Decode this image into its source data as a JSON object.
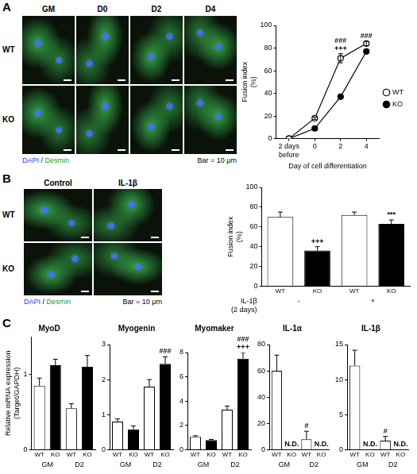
{
  "panels": [
    {
      "label": "A",
      "image_grid": {
        "columns": [
          "GM",
          "D0",
          "D2",
          "D4"
        ],
        "rows": [
          "WT",
          "KO"
        ],
        "stain": "DAPI / Desmin",
        "scale_bar": "Bar = 10 μm"
      }
    },
    {
      "label": "B",
      "image_grid": {
        "columns": [
          "Control",
          "IL-1β"
        ],
        "rows": [
          "WT",
          "KO"
        ],
        "stain": "DAPI / Desmin",
        "scale_bar": "Bar = 10 μm"
      }
    },
    {
      "label": "C"
    }
  ],
  "chart_data": [
    {
      "panel": "A",
      "type": "line",
      "x_label": "Day of cell differentiation",
      "y_label": "Fusion index (%)",
      "categories": [
        "2 days before",
        "0",
        "2",
        "4"
      ],
      "series": [
        {
          "name": "WT",
          "color": "#000000",
          "marker": "open_circle",
          "values": [
            0,
            18,
            71,
            84
          ],
          "errors": [
            0,
            1,
            4,
            2
          ]
        },
        {
          "name": "KO",
          "color": "#000000",
          "marker": "circle",
          "values": [
            0,
            9,
            37,
            77
          ],
          "errors": [
            0,
            1,
            1,
            1
          ]
        }
      ],
      "ylim": [
        0,
        100
      ],
      "yticks": [
        0,
        20,
        40,
        60,
        80,
        100
      ],
      "grid": false,
      "legend": "right",
      "annotations": [
        {
          "index": 2,
          "text": "+++"
        },
        {
          "index": 2,
          "text": "###"
        },
        {
          "index": 3,
          "text": "###"
        }
      ]
    },
    {
      "panel": "B",
      "type": "bar",
      "y_label": "Fusion index (%)",
      "categories": [
        "WT",
        "KO",
        "WT",
        "KO"
      ],
      "groups": [
        "-",
        "+"
      ],
      "group_title": "IL-1β (2 days)",
      "values": [
        70,
        36,
        72,
        63
      ],
      "errors": [
        5,
        4,
        3,
        4
      ],
      "colors": [
        "#ffffff",
        "#000000",
        "#ffffff",
        "#000000"
      ],
      "ylim": [
        0,
        100
      ],
      "yticks": [
        0,
        20,
        40,
        60,
        80,
        100
      ],
      "grid": false,
      "annotations": [
        {
          "index": 1,
          "text": "+++"
        },
        {
          "index": 3,
          "text": "***"
        }
      ]
    },
    {
      "panel": "C",
      "type": "bar",
      "title": "MyoD",
      "y_label": "Relative mRNA expression (Target/GAPDH)",
      "categories": [
        "WT",
        "KO",
        "WT",
        "KO"
      ],
      "groups": [
        "GM",
        "D2"
      ],
      "values": [
        0.85,
        1.12,
        0.55,
        1.1
      ],
      "errors": [
        0.1,
        0.08,
        0.06,
        0.15
      ],
      "colors": [
        "#ffffff",
        "#000000",
        "#ffffff",
        "#000000"
      ],
      "ylim": [
        0,
        1.5
      ],
      "yticks": [
        0,
        1
      ],
      "grid": false,
      "annotations": []
    },
    {
      "panel": "C",
      "type": "bar",
      "title": "Myogenin",
      "categories": [
        "WT",
        "KO",
        "WT",
        "KO"
      ],
      "groups": [
        "GM",
        "D2"
      ],
      "values": [
        0.8,
        0.58,
        1.8,
        2.45
      ],
      "errors": [
        0.08,
        0.1,
        0.2,
        0.2
      ],
      "colors": [
        "#ffffff",
        "#000000",
        "#ffffff",
        "#000000"
      ],
      "ylim": [
        0,
        3
      ],
      "yticks": [
        0,
        1,
        2,
        3
      ],
      "grid": false,
      "annotations": [
        {
          "index": 3,
          "text": "###"
        }
      ]
    },
    {
      "panel": "C",
      "type": "bar",
      "title": "Myomaker",
      "categories": [
        "WT",
        "KO",
        "WT",
        "KO"
      ],
      "groups": [
        "GM",
        "D2"
      ],
      "values": [
        1.05,
        0.8,
        3.3,
        7.5
      ],
      "errors": [
        0.1,
        0.05,
        0.3,
        0.5
      ],
      "colors": [
        "#ffffff",
        "#000000",
        "#ffffff",
        "#000000"
      ],
      "ylim": [
        0,
        8
      ],
      "yticks": [
        0,
        2,
        4,
        6,
        8
      ],
      "grid": false,
      "annotations": [
        {
          "index": 3,
          "text": "+++"
        },
        {
          "index": 3,
          "text": "###"
        }
      ]
    },
    {
      "panel": "C",
      "type": "bar",
      "title": "IL-1α",
      "categories": [
        "WT",
        "KO",
        "WT",
        "KO"
      ],
      "groups": [
        "GM",
        "D2"
      ],
      "values": [
        60,
        null,
        8,
        null
      ],
      "errors": [
        12,
        null,
        6,
        null
      ],
      "colors": [
        "#ffffff",
        "#000000",
        "#ffffff",
        "#000000"
      ],
      "ylim": [
        0,
        80
      ],
      "yticks": [
        0,
        20,
        40,
        60,
        80
      ],
      "grid": false,
      "annotations": [
        {
          "index": 1,
          "text": "N.D."
        },
        {
          "index": 2,
          "text": "#"
        },
        {
          "index": 3,
          "text": "N.D."
        }
      ]
    },
    {
      "panel": "C",
      "type": "bar",
      "title": "IL-1β",
      "categories": [
        "WT",
        "KO",
        "WT",
        "KO"
      ],
      "groups": [
        "GM",
        "D2"
      ],
      "values": [
        12,
        null,
        1.3,
        null
      ],
      "errors": [
        2.2,
        null,
        0.6,
        null
      ],
      "colors": [
        "#ffffff",
        "#000000",
        "#ffffff",
        "#000000"
      ],
      "ylim": [
        0,
        15
      ],
      "yticks": [
        0,
        5,
        10,
        15
      ],
      "grid": false,
      "annotations": [
        {
          "index": 1,
          "text": "N.D."
        },
        {
          "index": 2,
          "text": "#"
        },
        {
          "index": 3,
          "text": "N.D."
        }
      ]
    }
  ]
}
